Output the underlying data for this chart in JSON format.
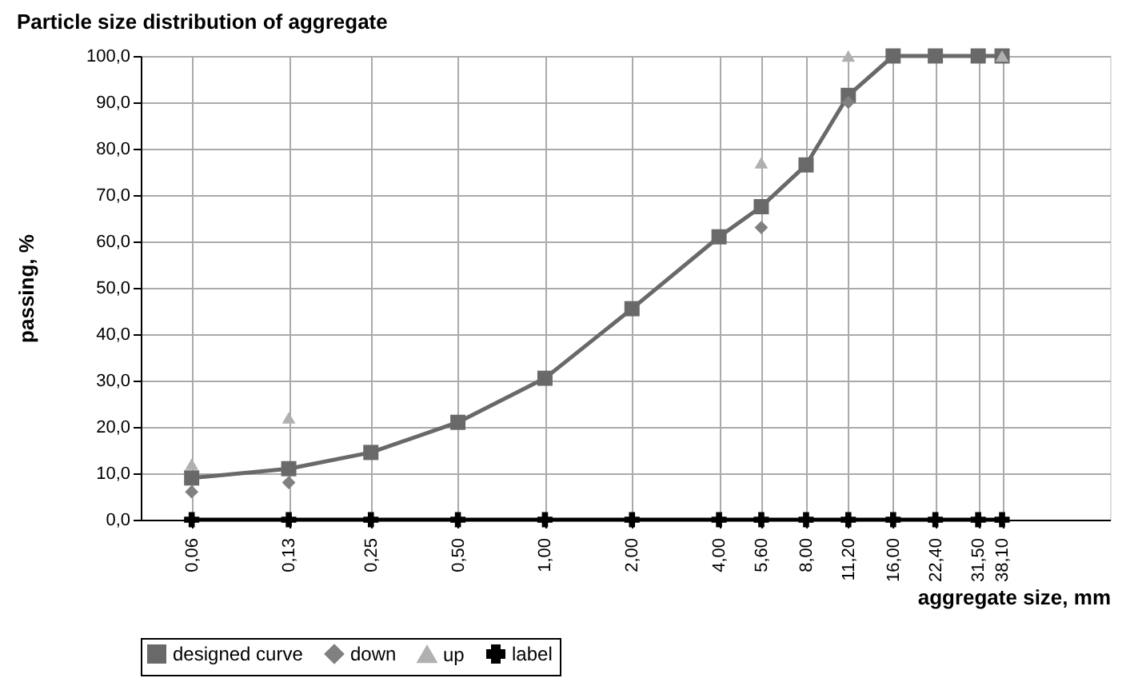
{
  "chart_data": {
    "type": "line",
    "title": "Particle size distribution  of aggregate",
    "xlabel": "aggregate size, mm",
    "ylabel": "passing, %",
    "x": [
      0.06,
      0.13,
      0.25,
      0.5,
      1,
      2,
      4,
      5.6,
      8,
      11.2,
      16,
      22.4,
      31.5,
      38.1
    ],
    "series": [
      {
        "name": "designed curve",
        "marker": "square",
        "color": "#696969",
        "values": [
          9,
          11,
          14.5,
          21,
          30.5,
          45.5,
          61,
          67.5,
          76.5,
          91.5,
          100,
          100,
          100,
          100
        ]
      },
      {
        "name": "down",
        "type": "scatter",
        "marker": "diamond",
        "color": "#808080",
        "values": [
          6,
          8,
          null,
          null,
          null,
          null,
          null,
          63,
          null,
          90,
          null,
          null,
          null,
          null
        ]
      },
      {
        "name": "up",
        "type": "scatter",
        "marker": "triangle",
        "color": "#b0b0b0",
        "values": [
          12,
          22,
          null,
          null,
          null,
          null,
          null,
          77,
          null,
          100,
          null,
          null,
          null,
          100
        ]
      },
      {
        "name": "label",
        "marker": "cross",
        "color": "#000000",
        "values": [
          0,
          0,
          0,
          0,
          0,
          0,
          0,
          0,
          0,
          0,
          0,
          0,
          0,
          0
        ]
      }
    ],
    "log": "x",
    "xlim": [
      0.04,
      90
    ],
    "xticks": [
      {
        "value": 0.06,
        "label": "0,06"
      },
      {
        "value": 0.13,
        "label": "0,13"
      },
      {
        "value": 0.25,
        "label": "0,25"
      },
      {
        "value": 0.5,
        "label": "0,50"
      },
      {
        "value": 1,
        "label": "1,00"
      },
      {
        "value": 2,
        "label": "2,00"
      },
      {
        "value": 4,
        "label": "4,00"
      },
      {
        "value": 5.6,
        "label": "5,60"
      },
      {
        "value": 8,
        "label": "8,00"
      },
      {
        "value": 11.2,
        "label": "11,20"
      },
      {
        "value": 16,
        "label": "16,00"
      },
      {
        "value": 22.4,
        "label": "22,40"
      },
      {
        "value": 31.5,
        "label": "31,50"
      },
      {
        "value": 38.1,
        "label": "38,10"
      }
    ],
    "ylim": [
      0,
      100
    ],
    "yticks": [
      {
        "value": 0,
        "label": "0,0"
      },
      {
        "value": 10,
        "label": "10,0"
      },
      {
        "value": 20,
        "label": "20,0"
      },
      {
        "value": 30,
        "label": "30,0"
      },
      {
        "value": 40,
        "label": "40,0"
      },
      {
        "value": 50,
        "label": "50,0"
      },
      {
        "value": 60,
        "label": "60,0"
      },
      {
        "value": 70,
        "label": "70,0"
      },
      {
        "value": 80,
        "label": "80,0"
      },
      {
        "value": 90,
        "label": "90,0"
      },
      {
        "value": 100,
        "label": "100,0"
      }
    ],
    "grid": true,
    "legend": "bottom"
  }
}
